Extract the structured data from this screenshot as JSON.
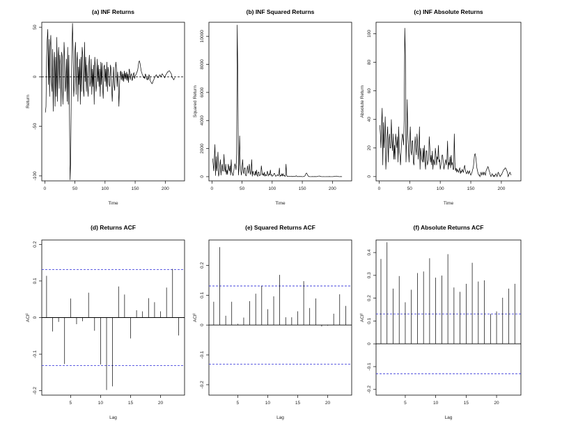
{
  "colors": {
    "line": "#000000",
    "bound": "#2a2ad8"
  },
  "chart_data": [
    {
      "type": "line",
      "title": "(a) INF Returns",
      "xlabel": "Time",
      "ylabel": "Return",
      "xlim": [
        -5,
        232
      ],
      "ylim": [
        -105,
        55
      ],
      "xticks": [
        0,
        50,
        100,
        150,
        200
      ],
      "yticks": [
        -100,
        -50,
        0,
        50
      ],
      "hline": 0,
      "series": [
        {
          "name": "INF Returns",
          "start": 1,
          "values": [
            -36,
            -30,
            20,
            37,
            48,
            -8,
            38,
            -20,
            30,
            42,
            -5,
            -15,
            28,
            -35,
            10,
            25,
            -30,
            20,
            -20,
            40,
            -25,
            18,
            30,
            -12,
            22,
            12,
            -30,
            25,
            20,
            -28,
            -10,
            35,
            18,
            -15,
            -8,
            18,
            -25,
            30,
            -28,
            22,
            -40,
            -104,
            -85,
            -10,
            25,
            54,
            30,
            -20,
            -10,
            25,
            35,
            -18,
            15,
            25,
            -25,
            10,
            -8,
            18,
            -28,
            20,
            -15,
            30,
            22,
            -12,
            -20,
            35,
            -5,
            20,
            -15,
            12,
            -10,
            -20,
            10,
            22,
            -10,
            -5,
            18,
            -18,
            8,
            -10,
            12,
            -28,
            20,
            10,
            -15,
            -8,
            18,
            -5,
            12,
            -10,
            8,
            -20,
            15,
            -8,
            14,
            -12,
            -22,
            10,
            12,
            -5,
            8,
            -10,
            15,
            -15,
            10,
            5,
            -8,
            -10,
            12,
            8,
            -12,
            -25,
            -5,
            10,
            -8,
            -14,
            6,
            15,
            8,
            -10,
            5,
            -5,
            -30,
            -10,
            4,
            6,
            -3,
            5,
            -4,
            3,
            -5,
            6,
            -2,
            4,
            -3,
            5,
            -4,
            3,
            -6,
            8,
            5,
            -3,
            2,
            3,
            -4,
            -2,
            3,
            4,
            -2,
            1,
            2,
            3,
            5,
            6,
            10,
            15,
            16,
            14,
            10,
            6,
            4,
            2,
            1,
            -1,
            0,
            -2,
            3,
            1,
            -2,
            -3,
            -1,
            -3,
            2,
            1,
            -4,
            -5,
            -6,
            -7,
            -6,
            -4,
            -3,
            -1,
            0,
            1,
            2,
            1,
            0,
            -1,
            0,
            1,
            2,
            1,
            0,
            2,
            3,
            2,
            1,
            0,
            -1,
            1,
            2,
            3,
            4,
            5,
            5,
            6,
            6,
            5,
            4,
            3,
            0,
            -1,
            -2,
            -3,
            -2,
            -1
          ]
        }
      ]
    },
    {
      "type": "line",
      "title": "(b) INF Squared Returns",
      "xlabel": "Time",
      "ylabel": "Squared Return",
      "xlim": [
        -5,
        232
      ],
      "ylim": [
        -300,
        11000
      ],
      "xticks": [
        0,
        50,
        100,
        150,
        200
      ],
      "yticks": [
        0,
        2000,
        4000,
        6000,
        8000,
        10000
      ],
      "series": [
        {
          "name": "INF Squared Returns",
          "start": 1,
          "values": [
            1296,
            900,
            400,
            1369,
            2304,
            64,
            1444,
            400,
            900,
            1764,
            25,
            225,
            784,
            1225,
            100,
            625,
            900,
            400,
            400,
            1600,
            625,
            324,
            900,
            144,
            484,
            144,
            900,
            625,
            400,
            784,
            100,
            1225,
            324,
            225,
            64,
            324,
            625,
            900,
            784,
            484,
            1600,
            10816,
            7225,
            100,
            625,
            2916,
            900,
            400,
            100,
            625,
            1225,
            324,
            225,
            625,
            625,
            100,
            64,
            324,
            784,
            400,
            225,
            900,
            484,
            144,
            400,
            1225,
            25,
            400,
            225,
            144,
            100,
            400,
            100,
            484,
            100,
            25,
            324,
            324,
            64,
            100,
            144,
            784,
            400,
            100,
            225,
            64,
            324,
            25,
            144,
            100,
            64,
            400,
            225,
            64,
            196,
            144,
            484,
            100,
            144,
            25,
            64,
            100,
            225,
            225,
            100,
            25,
            64,
            100,
            144,
            64,
            144,
            625,
            25,
            100,
            64,
            196,
            36,
            225,
            64,
            100,
            25,
            25,
            900,
            100,
            16,
            36,
            9,
            25,
            16,
            9,
            25,
            36,
            4,
            16,
            9,
            25,
            16,
            9,
            36,
            64,
            25,
            9,
            4,
            9,
            16,
            4,
            9,
            16,
            4,
            1,
            4,
            9,
            25,
            36,
            100,
            225,
            256,
            196,
            100,
            36,
            16,
            4,
            1,
            1,
            0,
            4,
            9,
            1,
            4,
            9,
            1,
            9,
            4,
            1,
            16,
            25,
            36,
            49,
            36,
            16,
            9,
            1,
            0,
            1,
            4,
            1,
            0,
            1,
            0,
            1,
            4,
            1,
            0,
            4,
            9,
            4,
            1,
            0,
            1,
            1,
            4,
            9,
            16,
            25,
            25,
            36,
            36,
            25,
            16,
            9,
            0,
            1,
            4,
            9,
            4,
            1
          ]
        }
      ]
    },
    {
      "type": "line",
      "title": "(c) INF Absolute Returns",
      "xlabel": "Time",
      "ylabel": "Absolute Return",
      "xlim": [
        -5,
        232
      ],
      "ylim": [
        -3,
        108
      ],
      "xticks": [
        0,
        50,
        100,
        150,
        200
      ],
      "yticks": [
        0,
        20,
        40,
        60,
        80,
        100
      ],
      "series": [
        {
          "name": "INF Absolute Returns",
          "start": 1,
          "values": [
            36,
            30,
            20,
            37,
            48,
            8,
            38,
            20,
            30,
            42,
            5,
            15,
            28,
            35,
            10,
            25,
            30,
            20,
            20,
            40,
            25,
            18,
            30,
            12,
            22,
            12,
            30,
            25,
            20,
            28,
            10,
            35,
            18,
            15,
            8,
            18,
            25,
            30,
            28,
            22,
            40,
            104,
            85,
            10,
            25,
            54,
            30,
            20,
            10,
            25,
            35,
            18,
            15,
            25,
            25,
            10,
            8,
            18,
            28,
            20,
            15,
            30,
            22,
            12,
            20,
            35,
            5,
            20,
            15,
            12,
            10,
            20,
            10,
            22,
            10,
            5,
            18,
            18,
            8,
            10,
            12,
            28,
            20,
            10,
            15,
            8,
            18,
            5,
            12,
            10,
            8,
            20,
            15,
            8,
            14,
            12,
            22,
            10,
            12,
            5,
            8,
            10,
            15,
            15,
            10,
            5,
            8,
            10,
            12,
            8,
            12,
            25,
            5,
            10,
            8,
            14,
            6,
            15,
            8,
            10,
            5,
            5,
            30,
            10,
            4,
            6,
            3,
            5,
            4,
            3,
            5,
            6,
            2,
            4,
            3,
            5,
            4,
            3,
            6,
            8,
            5,
            3,
            2,
            3,
            4,
            2,
            3,
            4,
            2,
            1,
            2,
            3,
            5,
            6,
            10,
            15,
            16,
            14,
            10,
            6,
            4,
            2,
            1,
            1,
            0,
            2,
            3,
            1,
            2,
            3,
            1,
            3,
            2,
            1,
            4,
            5,
            6,
            7,
            6,
            4,
            3,
            1,
            0,
            1,
            2,
            1,
            0,
            1,
            0,
            1,
            2,
            1,
            0,
            2,
            3,
            2,
            1,
            0,
            1,
            1,
            2,
            3,
            4,
            5,
            5,
            6,
            6,
            5,
            4,
            3,
            0,
            1,
            2,
            3,
            2,
            1
          ]
        }
      ]
    },
    {
      "type": "bar",
      "title": "(d) Returns ACF",
      "xlabel": "Lag",
      "ylabel": "ACF",
      "xlim": [
        0.2,
        24
      ],
      "ylim": [
        -0.212,
        0.212
      ],
      "xticks": [
        5,
        10,
        15,
        20
      ],
      "yticks": [
        -0.2,
        -0.1,
        0.0,
        0.1,
        0.2
      ],
      "bounds": [
        0.131,
        -0.131
      ],
      "lags": [
        1,
        2,
        3,
        4,
        5,
        6,
        7,
        8,
        9,
        10,
        11,
        12,
        13,
        14,
        15,
        16,
        17,
        18,
        19,
        20,
        21,
        22,
        23
      ],
      "values": [
        0.114,
        -0.038,
        -0.012,
        -0.127,
        0.052,
        -0.018,
        -0.01,
        0.068,
        -0.036,
        -0.128,
        -0.198,
        -0.188,
        0.085,
        0.063,
        -0.057,
        0.02,
        0.017,
        0.053,
        0.042,
        0.017,
        0.082,
        0.133,
        -0.049
      ]
    },
    {
      "type": "bar",
      "title": "(e) Squared Returns ACF",
      "xlabel": "Lag",
      "ylabel": "ACF",
      "xlim": [
        0.2,
        24
      ],
      "ylim": [
        -0.235,
        0.285
      ],
      "xticks": [
        5,
        10,
        15,
        20
      ],
      "yticks": [
        -0.2,
        -0.1,
        0.0,
        0.1,
        0.2
      ],
      "bounds": [
        0.131,
        -0.131
      ],
      "lags": [
        1,
        2,
        3,
        4,
        5,
        6,
        7,
        8,
        9,
        10,
        11,
        12,
        13,
        14,
        15,
        16,
        17,
        18,
        19,
        20,
        21,
        22,
        23
      ],
      "values": [
        0.078,
        0.261,
        0.031,
        0.078,
        0.004,
        0.025,
        0.08,
        0.105,
        0.131,
        0.053,
        0.096,
        0.168,
        0.026,
        0.026,
        0.046,
        0.147,
        0.057,
        0.089,
        -0.005,
        -0.002,
        0.038,
        0.103,
        0.064
      ]
    },
    {
      "type": "bar",
      "title": "(f) Absolute Returns ACF",
      "xlabel": "Lag",
      "ylabel": "ACF",
      "xlim": [
        0.2,
        24
      ],
      "ylim": [
        -0.225,
        0.455
      ],
      "xticks": [
        5,
        10,
        15,
        20
      ],
      "yticks": [
        -0.2,
        -0.1,
        0.0,
        0.1,
        0.2,
        0.3,
        0.4
      ],
      "bounds": [
        0.131,
        -0.131
      ],
      "lags": [
        1,
        2,
        3,
        4,
        5,
        6,
        7,
        8,
        9,
        10,
        11,
        12,
        13,
        14,
        15,
        16,
        17,
        18,
        19,
        20,
        21,
        22,
        23
      ],
      "values": [
        0.372,
        0.445,
        0.242,
        0.297,
        0.182,
        0.237,
        0.31,
        0.317,
        0.375,
        0.29,
        0.299,
        0.393,
        0.247,
        0.228,
        0.263,
        0.355,
        0.273,
        0.278,
        0.131,
        0.142,
        0.202,
        0.242,
        0.263
      ]
    }
  ]
}
